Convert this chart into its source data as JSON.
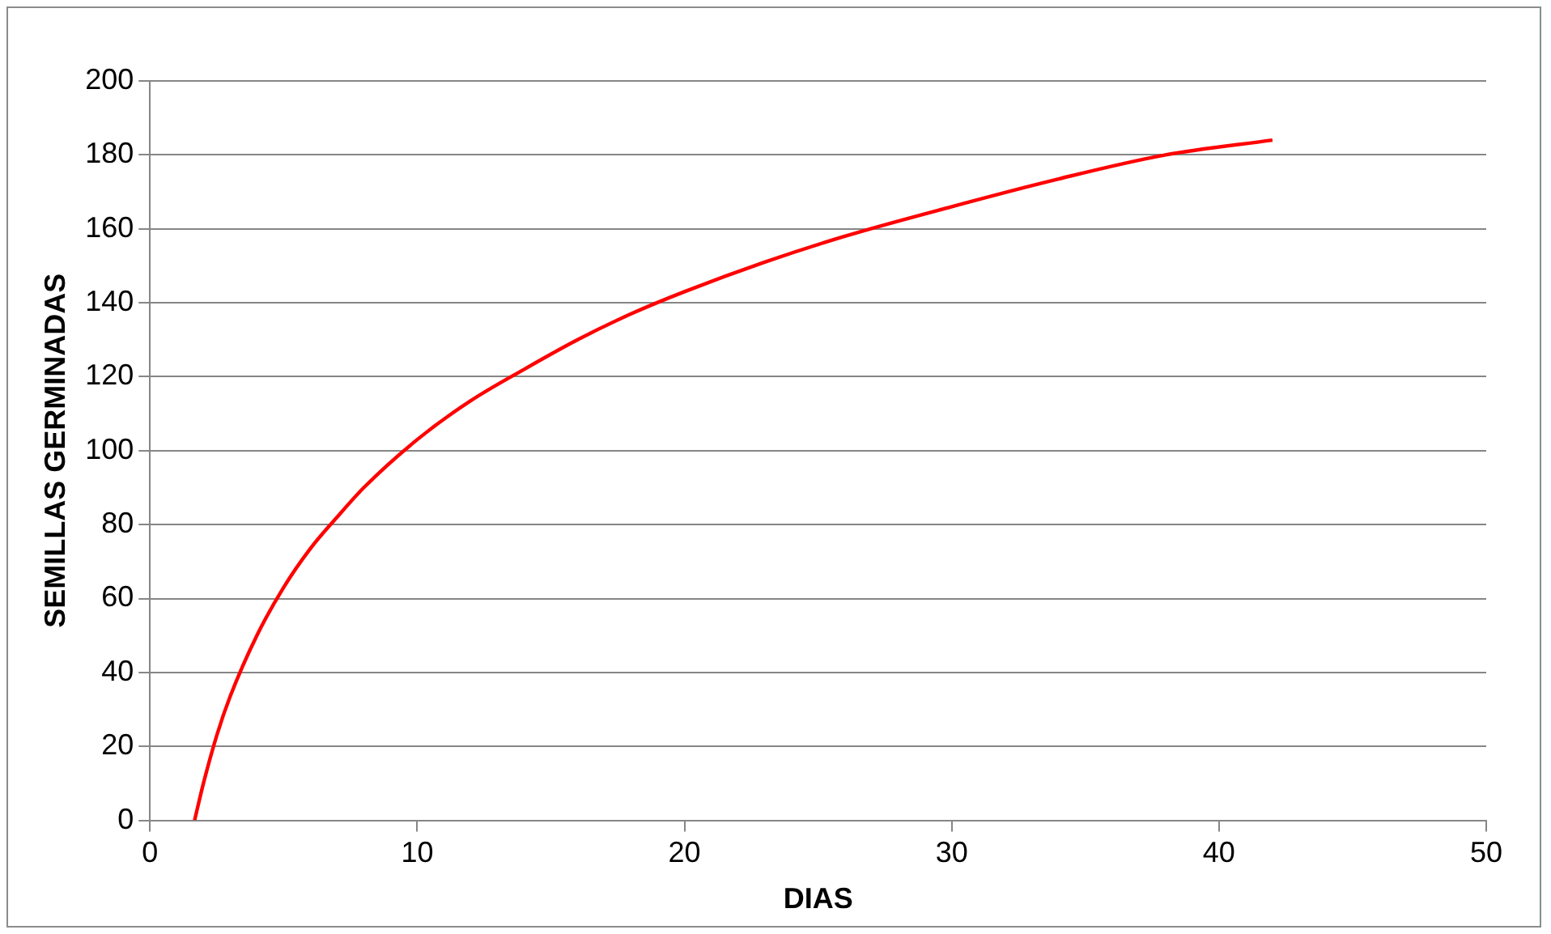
{
  "chart_data": {
    "type": "line",
    "xlabel": "DIAS",
    "ylabel": "SEMILLAS GERMINADAS",
    "series": [
      {
        "color": "#ff0000",
        "x": [
          1.67,
          2,
          2.5,
          3,
          4,
          5,
          6,
          7,
          8,
          10,
          12,
          14,
          16,
          18,
          20,
          23,
          26,
          30,
          34,
          38,
          42
        ],
        "values": [
          0,
          10,
          23,
          33.5,
          50,
          63,
          73.5,
          82,
          90,
          103,
          113.5,
          122,
          130,
          137,
          143,
          151,
          158,
          166,
          173.5,
          180,
          184
        ]
      }
    ],
    "xlim": [
      0,
      50
    ],
    "xticks": [
      0,
      10,
      20,
      30,
      40,
      50
    ],
    "ylim": [
      0,
      200
    ],
    "yticks": [
      0,
      20,
      40,
      60,
      80,
      100,
      120,
      140,
      160,
      180,
      200
    ],
    "grid": "y",
    "legend": false,
    "marker": "none",
    "line_style": "solid"
  }
}
